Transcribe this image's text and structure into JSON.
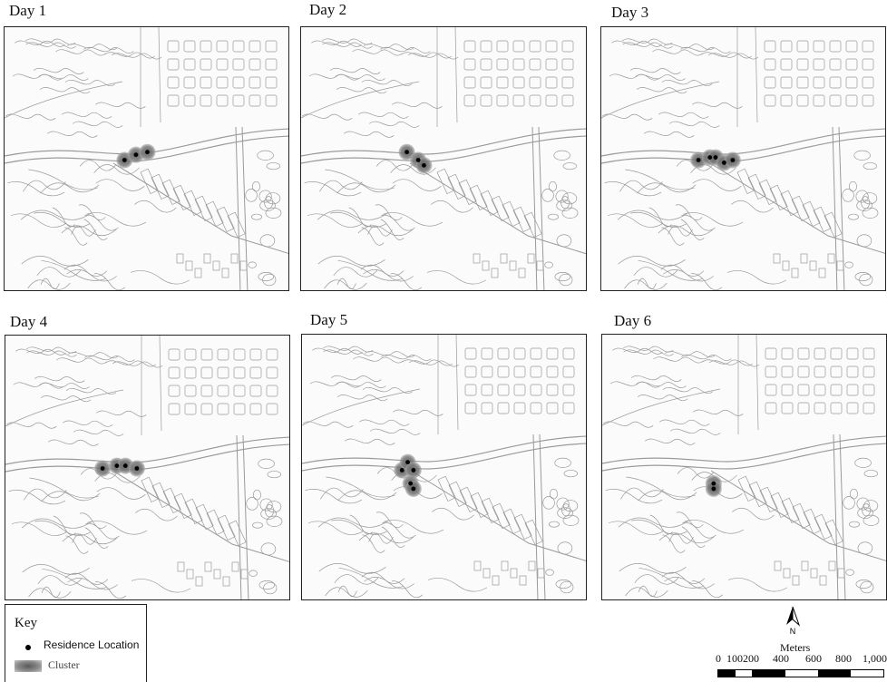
{
  "panels": [
    {
      "title": "Day 1",
      "residences": [
        [
          0.42,
          0.5
        ],
        [
          0.46,
          0.48
        ],
        [
          0.5,
          0.47
        ]
      ]
    },
    {
      "title": "Day 2",
      "residences": [
        [
          0.37,
          0.47
        ],
        [
          0.41,
          0.5
        ],
        [
          0.43,
          0.52
        ]
      ]
    },
    {
      "title": "Day 3",
      "residences": [
        [
          0.34,
          0.5
        ],
        [
          0.38,
          0.49
        ],
        [
          0.4,
          0.49
        ],
        [
          0.43,
          0.51
        ],
        [
          0.46,
          0.5
        ]
      ]
    },
    {
      "title": "Day 4",
      "residences": [
        [
          0.34,
          0.5
        ],
        [
          0.39,
          0.49
        ],
        [
          0.42,
          0.49
        ],
        [
          0.46,
          0.5
        ]
      ]
    },
    {
      "title": "Day 5",
      "residences": [
        [
          0.35,
          0.51
        ],
        [
          0.37,
          0.48
        ],
        [
          0.39,
          0.51
        ],
        [
          0.38,
          0.56
        ],
        [
          0.39,
          0.58
        ]
      ]
    },
    {
      "title": "Day 6",
      "residences": [
        [
          0.39,
          0.56
        ],
        [
          0.39,
          0.58
        ]
      ]
    }
  ],
  "key": {
    "title": "Key",
    "residence_label": "Residence Location",
    "cluster_label": "Cluster"
  },
  "north_arrow": {
    "label": "N"
  },
  "scale": {
    "unit": "Meters",
    "ticks": [
      "0",
      "100",
      "200",
      "400",
      "600",
      "800",
      "1,000"
    ]
  },
  "colors": {
    "map_lines": "#9a9a9a",
    "cluster_center": "#5a5a5a",
    "cluster_edge": "#a9a9a9",
    "residence_dot": "#000000"
  }
}
